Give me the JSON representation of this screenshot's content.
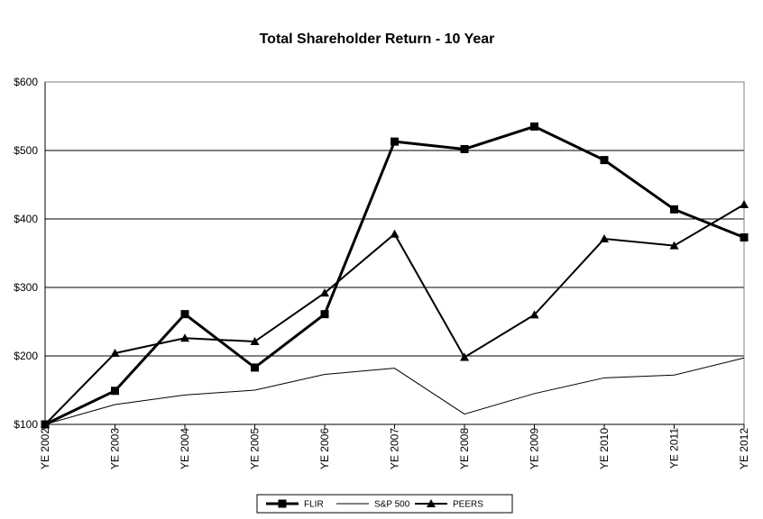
{
  "chart_data": {
    "type": "line",
    "title": "Total Shareholder Return - 10 Year",
    "xlabel": "",
    "ylabel": "",
    "categories": [
      "YE 2002",
      "YE 2003",
      "YE 2004",
      "YE 2005",
      "YE 2006",
      "YE 2007",
      "YE 2008",
      "YE 2009",
      "YE 2010",
      "YE 2011",
      "YE 2012"
    ],
    "ylim": [
      100,
      600
    ],
    "yticks": [
      "$100",
      "$200",
      "$300",
      "$400",
      "$500",
      "$600"
    ],
    "grid": "horizontal",
    "legend_position": "bottom",
    "series": [
      {
        "name": "FLIR",
        "marker": "square",
        "style": "thick",
        "color": "#000000",
        "values": [
          100,
          149,
          261,
          183,
          261,
          513,
          502,
          535,
          486,
          414,
          373
        ]
      },
      {
        "name": "S&P 500",
        "marker": "none",
        "style": "thin",
        "color": "#000000",
        "values": [
          100,
          129,
          143,
          150,
          173,
          182,
          115,
          145,
          168,
          172,
          197
        ]
      },
      {
        "name": "PEERS",
        "marker": "triangle",
        "style": "medium",
        "color": "#000000",
        "values": [
          100,
          204,
          226,
          221,
          292,
          378,
          198,
          260,
          371,
          361,
          421
        ]
      }
    ]
  }
}
